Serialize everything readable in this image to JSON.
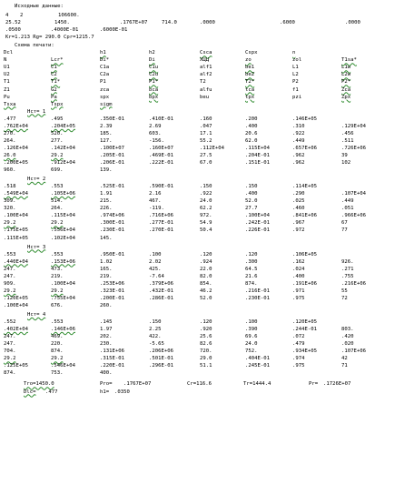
{
  "colors": {
    "text": "#000000",
    "underline": "#2e8b2e",
    "background": "#ffffff"
  },
  "title": "Исходные данные:",
  "initial_rows": [
    [
      "4",
      "2",
      "",
      "",
      "106600."
    ],
    [
      "25.52",
      "1450.",
      "",
      ".1767E+07",
      "714.0",
      ".0000",
      ".6000",
      ".0000"
    ],
    [
      ".0500",
      ".4000E-01",
      ".6000E-01"
    ]
  ],
  "params_line": "Kr=1.213  Rg= 290.0  Cpr=1215.7",
  "scheme_title": "Схема печати:",
  "scheme_rows": [
    [
      "Dcl",
      "h1",
      "h2",
      "Csca",
      "Cspx",
      "n"
    ],
    [
      "N",
      "Lcr*",
      "Di*",
      "Di",
      "ХЦЦ",
      "zo",
      "zol",
      "T1sa*"
    ],
    [
      "U1",
      "C1",
      "C1a",
      "C1u",
      "alf1",
      "be1",
      "L1",
      "L1w"
    ],
    [
      "U2",
      "C2",
      "C2a",
      "C2u",
      "alf2",
      "be2",
      "L2",
      "L2w"
    ],
    [
      "T1",
      "T1*",
      "P1",
      "P1*",
      "T2",
      "T2*",
      "P2",
      "P2*"
    ],
    [
      "Z1",
      "G2",
      "zca",
      "bca",
      "alfu",
      "tca",
      "f1",
      "Zca"
    ],
    [
      "Pu",
      "Pa",
      "spx",
      "bpx",
      "beu",
      "tpx",
      "pzi",
      "Zpx"
    ],
    [
      "Tsxa",
      "Tspx",
      "sigm"
    ]
  ],
  "stages": [
    {
      "label": "Нст=  1",
      "rows": [
        [
          ".477",
          ".495",
          ".350E-01",
          ".410E-01",
          ".160",
          ".200",
          ".146E+05"
        ],
        [
          ".762E+04",
          ".204E+05",
          "2.39",
          "2.69",
          ".047",
          ".400",
          ".310",
          ".129E+04"
        ],
        [
          "270.",
          "520.",
          "185.",
          "603.",
          "17.1",
          "20.6",
          ".922",
          ".456"
        ],
        [
          "264.",
          "277.",
          "127.",
          "-156.",
          "55.2",
          "62.0",
          ".449",
          ".511"
        ],
        [
          ".126E+04",
          ".142E+04",
          ".100E+07",
          ".160E+07",
          ".112E+04",
          ".115E+04",
          ".657E+06",
          ".726E+06"
        ],
        [
          "26.0",
          "29.2",
          ".205E-01",
          ".469E-01",
          "27.5",
          ".204E-01",
          ".962",
          "39"
        ],
        [
          ".200E+05",
          ".912E+04",
          ".206E-01",
          ".222E-01",
          "67.0",
          ".151E-01",
          ".962",
          "102"
        ],
        [
          "960.",
          "699.",
          "139."
        ]
      ]
    },
    {
      "label": "Нст=  2",
      "rows": [
        [
          ".518",
          ".553",
          ".525E-01",
          ".590E-01",
          ".150",
          ".150",
          ".114E+05"
        ],
        [
          ".549E+04",
          ".105E+06",
          "1.91",
          "2.16",
          ".922",
          ".400",
          ".290",
          ".107E+04"
        ],
        [
          "309.",
          "514.",
          "215.",
          "467.",
          "24.0",
          "52.0",
          ".025",
          ".449"
        ],
        [
          "320.",
          "264.",
          "226.",
          "-119.",
          "62.2",
          "27.7",
          ".460",
          ".051"
        ],
        [
          ".100E+04",
          ".115E+04",
          ".974E+06",
          ".716E+06",
          "972.",
          ".100E+04",
          ".841E+06",
          ".966E+06"
        ],
        [
          "29.2",
          "29.2",
          ".300E-01",
          ".277E-01",
          "54.9",
          ".242E-01",
          ".967",
          "67"
        ],
        [
          ".175E+05",
          ".556E+04",
          ".230E-01",
          ".270E-01",
          "50.4",
          ".226E-01",
          ".972",
          "77"
        ],
        [
          ".115E+05",
          ".102E+04",
          "145."
        ]
      ]
    },
    {
      "label": "Нст=  3",
      "rows": [
        [
          ".553",
          ".553",
          ".950E-01",
          ".100",
          ".120",
          ".120",
          ".106E+05"
        ],
        [
          ".440E+04",
          ".153E+06",
          "1.02",
          "2.02",
          ".924",
          ".300",
          ".162",
          "926."
        ],
        [
          "247.",
          "473.",
          "165.",
          "425.",
          "22.0",
          "64.5",
          ".024",
          ".271"
        ],
        [
          "247.",
          "219.",
          "219.",
          "-7.64",
          "82.0",
          "21.6",
          ".400",
          ".755"
        ],
        [
          "909.",
          ".100E+04",
          ".253E+06",
          ".379E+06",
          "854.",
          "874.",
          ".191E+06",
          ".216E+06"
        ],
        [
          "29.2",
          "29.2",
          ".323E-01",
          ".432E-01",
          "46.2",
          ".216E-01",
          ".971",
          "55"
        ],
        [
          ".120E+05",
          ".755E+04",
          ".200E-01",
          ".286E-01",
          "52.0",
          ".230E-01",
          ".975",
          "72"
        ],
        [
          ".100E+04",
          "676.",
          "260."
        ]
      ]
    },
    {
      "label": "Нст=  4",
      "rows": [
        [
          ".552",
          ".553",
          ".145",
          ".150",
          ".120",
          ".100",
          ".120E+05"
        ],
        [
          ".402E+04",
          ".146E+06",
          "1.97",
          "2.25",
          ".920",
          ".390",
          ".244E-01",
          "803."
        ],
        [
          "247.",
          "469.",
          "202.",
          "422.",
          "25.6",
          "69.6",
          ".072",
          ".420"
        ],
        [
          "247.",
          "220.",
          "230.",
          "-5.65",
          "82.6",
          "24.0",
          ".479",
          ".020"
        ],
        [
          "704.",
          "874.",
          ".131E+06",
          ".206E+06",
          "720.",
          "752.",
          ".934E+05",
          ".107E+06"
        ],
        [
          "29.2",
          "29.2",
          ".315E-01",
          ".501E-01",
          "29.0",
          ".404E-01",
          ".974",
          "42"
        ],
        [
          ".125E+05",
          ".546E+04",
          ".220E-01",
          ".296E-01",
          "51.1",
          ".245E-01",
          ".975",
          "71"
        ],
        [
          "874.",
          "753.",
          "400."
        ]
      ]
    }
  ],
  "summary": {
    "line1": [
      "Tro=1450.0",
      "Pro=",
      ".1767E+07",
      "Cr=116.6",
      "Tr=1444.4",
      "Pr=",
      ".1726E+07"
    ],
    "line2": [
      "Dlc=",
      ".477",
      "h1=",
      ".0350"
    ]
  }
}
